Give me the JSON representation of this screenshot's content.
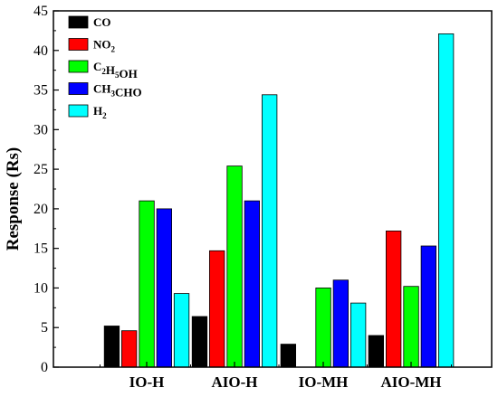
{
  "chart_data": {
    "type": "bar",
    "title": "",
    "xlabel": "",
    "ylabel": "Response (Rs)",
    "ylim": [
      0,
      45
    ],
    "yticks": [
      0,
      5,
      10,
      15,
      20,
      25,
      30,
      35,
      40,
      45
    ],
    "categories": [
      "IO-H",
      "AIO-H",
      "IO-MH",
      "AIO-MH"
    ],
    "grid": false,
    "legend_position": "top-left",
    "series": [
      {
        "name": "CO",
        "legend_parts": [
          [
            "CO",
            ""
          ]
        ],
        "color": "#000000",
        "values": [
          5.2,
          6.4,
          2.9,
          4.0
        ]
      },
      {
        "name": "NO2",
        "legend_parts": [
          [
            "NO",
            ""
          ],
          [
            "2",
            "sub"
          ]
        ],
        "color": "#ff0000",
        "values": [
          4.6,
          14.7,
          null,
          17.2
        ]
      },
      {
        "name": "C2H5OH",
        "legend_parts": [
          [
            "C",
            ""
          ],
          [
            "2",
            "sub"
          ],
          [
            "H",
            ""
          ],
          [
            "5",
            "sub"
          ],
          [
            "OH",
            ""
          ]
        ],
        "color": "#00ff00",
        "values": [
          21.0,
          25.4,
          10.0,
          10.2
        ]
      },
      {
        "name": "CH3CHO",
        "legend_parts": [
          [
            "CH",
            ""
          ],
          [
            "3",
            "sub"
          ],
          [
            "CHO",
            ""
          ]
        ],
        "color": "#0000ff",
        "values": [
          20.0,
          21.0,
          11.0,
          15.3
        ]
      },
      {
        "name": "H2",
        "legend_parts": [
          [
            "H",
            ""
          ],
          [
            "2",
            "sub"
          ]
        ],
        "color": "#00ffff",
        "values": [
          9.3,
          34.4,
          8.1,
          42.1
        ]
      }
    ]
  }
}
